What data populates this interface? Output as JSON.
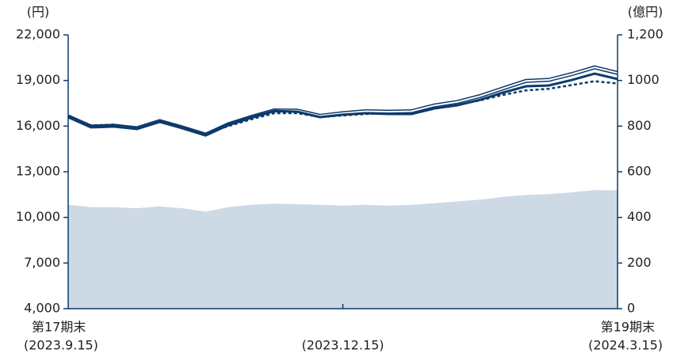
{
  "chart_data": {
    "type": "line",
    "y_axis_label": "(円)",
    "y2_axis_label": "(億円)",
    "categories": [
      "(2023.9.15)",
      null,
      null,
      null,
      null,
      null,
      null,
      null,
      null,
      null,
      null,
      null,
      "(2023.12.15)",
      null,
      null,
      null,
      null,
      null,
      null,
      null,
      null,
      null,
      null,
      null,
      "(2024.3.15)"
    ],
    "annotations": [
      {
        "text": "第17期末",
        "category": 0
      },
      {
        "text": "第19期末",
        "category": 24
      }
    ],
    "ylim": [
      4000,
      22000
    ],
    "yticks": [
      {
        "value": 4000,
        "label": "4,000"
      },
      {
        "value": 7000,
        "label": "7,000"
      },
      {
        "value": 10000,
        "label": "10,000"
      },
      {
        "value": 13000,
        "label": "13,000"
      },
      {
        "value": 16000,
        "label": "16,000"
      },
      {
        "value": 19000,
        "label": "19,000"
      },
      {
        "value": 22000,
        "label": "22,000"
      }
    ],
    "y2lim": [
      0,
      1200
    ],
    "y2ticks": [
      0,
      200,
      400,
      600,
      800,
      1000,
      {
        "value": 1200,
        "label": "1,200"
      }
    ],
    "series": [
      {
        "type": "area",
        "axis": "y2",
        "color": "#cdd9e5",
        "values": [
          455,
          445,
          445,
          440,
          448,
          440,
          425,
          445,
          455,
          460,
          458,
          455,
          452,
          455,
          452,
          455,
          462,
          470,
          478,
          490,
          498,
          502,
          510,
          520,
          518
        ]
      },
      {
        "style": "dotted",
        "color": "#0d3a6b",
        "values": [
          16640,
          16050,
          16100,
          15900,
          16300,
          15950,
          15500,
          16000,
          16450,
          16850,
          16850,
          16600,
          16700,
          16800,
          16850,
          16900,
          17200,
          17400,
          17700,
          18050,
          18350,
          18450,
          18700,
          18950,
          18800
        ]
      },
      {
        "style": "double",
        "color": "#0d3a6b",
        "values": [
          16640,
          15970,
          16020,
          15860,
          16330,
          15910,
          15440,
          16120,
          16600,
          17030,
          17020,
          16680,
          16850,
          16980,
          16950,
          16980,
          17360,
          17590,
          17980,
          18480,
          18970,
          19040,
          19420,
          19860,
          19490
        ]
      },
      {
        "style": "solid",
        "color": "#0d3a6b",
        "values": [
          16640,
          15970,
          16020,
          15860,
          16330,
          15910,
          15440,
          16120,
          16590,
          17000,
          16950,
          16590,
          16750,
          16850,
          16800,
          16800,
          17160,
          17370,
          17730,
          18200,
          18620,
          18670,
          19030,
          19450,
          19090
        ]
      }
    ]
  }
}
